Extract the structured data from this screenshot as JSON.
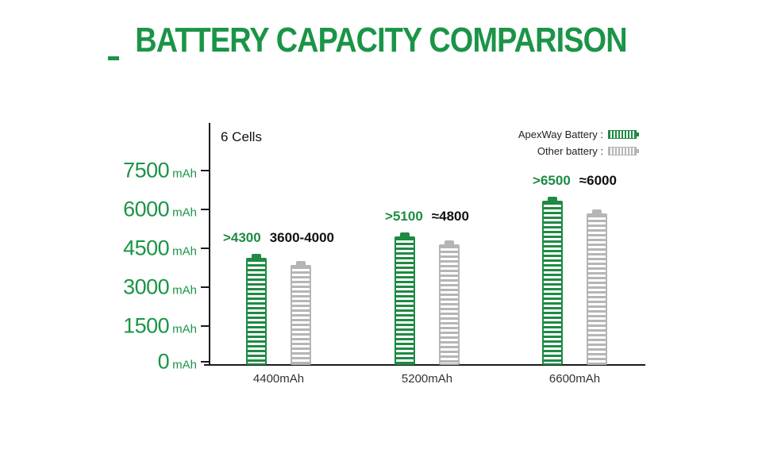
{
  "chart_data": {
    "type": "bar",
    "title": "BATTERY CAPACITY COMPARISON",
    "subtitle": "6 Cells",
    "categories": [
      "4400mAh",
      "5200mAh",
      "6600mAh"
    ],
    "series": [
      {
        "name": "ApexWay Battery",
        "values": [
          4300,
          5100,
          6500
        ],
        "data_labels": [
          ">4300",
          ">5100",
          ">6500"
        ]
      },
      {
        "name": "Other battery",
        "values": [
          4000,
          4800,
          6000
        ],
        "data_labels": [
          "3600-4000",
          "≈4800",
          "≈6000"
        ]
      }
    ],
    "ylabel": "mAh",
    "yticks": [
      7500,
      6000,
      4500,
      3000,
      1500,
      0
    ],
    "ylim": [
      0,
      7500
    ],
    "grid": false,
    "legend_position": "top-right"
  },
  "legend": [
    {
      "label": "ApexWay Battery :"
    },
    {
      "label": "Other battery :"
    }
  ],
  "colors": {
    "title_green": "#1b9447",
    "apexway_green": "#1e8a43",
    "other_gray": "#b5b5b5",
    "axis": "#1a1a1a",
    "label_black": "#111111"
  }
}
